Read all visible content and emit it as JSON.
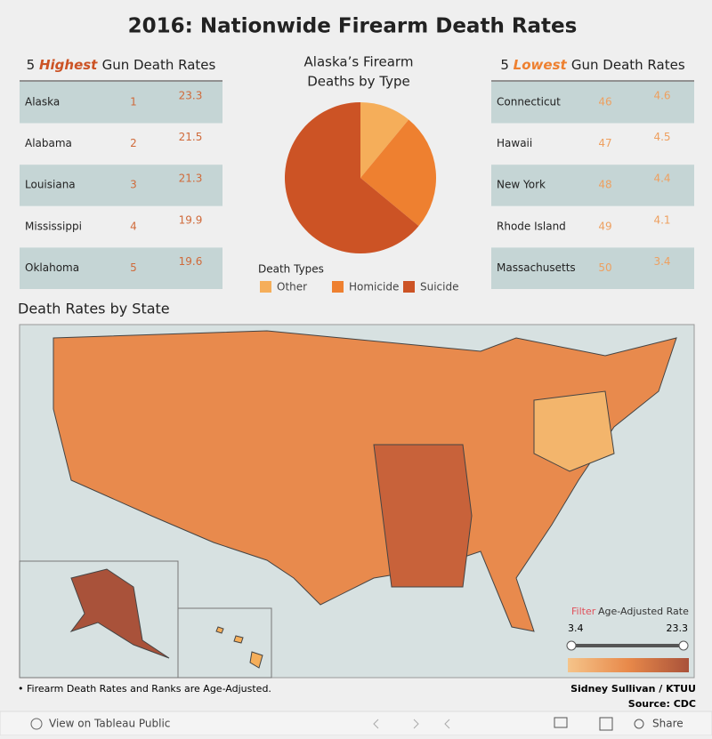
{
  "title": "2016: Nationwide Firearm Death Rates",
  "highest": {
    "header": [
      "5",
      "Highest",
      "Gun Death Rates"
    ],
    "rows": [
      [
        "Alaska",
        "1",
        "23.3"
      ],
      [
        "Alabama",
        "2",
        "21.5"
      ],
      [
        "Louisiana",
        "3",
        "21.3"
      ],
      [
        "Mississippi",
        "4",
        "19.9"
      ],
      [
        "Oklahoma",
        "5",
        "19.6"
      ]
    ]
  },
  "lowest": {
    "header": [
      "5",
      "Lowest",
      "Gun Death Rates"
    ],
    "rows": [
      [
        "Connecticut",
        "46",
        "4.6"
      ],
      [
        "Hawaii",
        "47",
        "4.5"
      ],
      [
        "New York",
        "48",
        "4.4"
      ],
      [
        "Rhode Island",
        "49",
        "4.1"
      ],
      [
        "Massachusetts",
        "50",
        "3.4"
      ]
    ]
  },
  "chart_data": {
    "type": "pie",
    "title": [
      "Alaska’s Firearm",
      "Deaths by Type"
    ],
    "legend_title": "Death Types",
    "categories": [
      "Other",
      "Homicide",
      "Suicide"
    ],
    "values": [
      11,
      25,
      64
    ],
    "colors": [
      "#f5ae5a",
      "#ee8030",
      "#cc5325"
    ]
  },
  "map": {
    "title": "Death Rates by State",
    "legend": {
      "filter": "Filter",
      "label": "Age-Adjusted Rate",
      "min": "3.4",
      "max": "23.3"
    }
  },
  "footer": {
    "note": "• Firearm Death Rates and Ranks are Age-Adjusted.",
    "author": "Sidney Sullivan / KTUU",
    "source": "Source: CDC"
  },
  "toolbar": {
    "view": "View on Tableau Public",
    "share": "Share"
  }
}
